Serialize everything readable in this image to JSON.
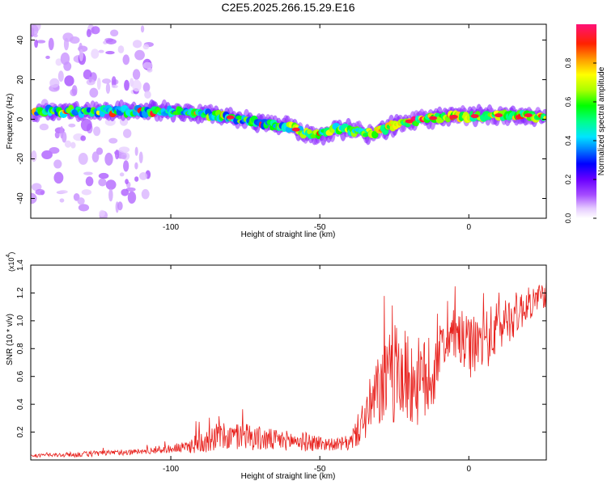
{
  "figure_title": "C2E5.2025.266.15.29.E16",
  "colors": {
    "snr_line": "#e8201c",
    "spectrogram_background": "#ffffff",
    "axis": "#000000"
  },
  "chart_data": [
    {
      "type": "heatmap",
      "title": "C2E5.2025.266.15.29.E16",
      "xlabel": "Height of straight line (km)",
      "ylabel": "Frequency (Hz)",
      "xlim": [
        -147,
        26
      ],
      "ylim": [
        -50,
        48
      ],
      "x_ticks": [
        -100,
        -50,
        0
      ],
      "y_ticks": [
        -40,
        -20,
        0,
        20,
        40
      ],
      "colorbar": {
        "label": "Normalized spectral amplitude",
        "range": [
          0,
          1
        ],
        "ticks": [
          "0.0",
          "0.2",
          "0.4",
          "0.6",
          "0.8"
        ],
        "tick_values": [
          0,
          0.2,
          0.4,
          0.6,
          0.8
        ],
        "colormap": "rainbow (white-purple-blue-cyan-green-yellow-red-magenta)"
      },
      "ridge": {
        "description": "Dominant frequency track vs height",
        "x": [
          -145,
          -130,
          -115,
          -100,
          -90,
          -80,
          -70,
          -60,
          -55,
          -50,
          -45,
          -40,
          -35,
          -30,
          -25,
          -20,
          -10,
          0,
          10,
          20,
          26
        ],
        "y": [
          4,
          4,
          4,
          4,
          3,
          1,
          -2,
          -4,
          -7,
          -8,
          -5,
          -5,
          -7,
          -6,
          -3,
          -1,
          1,
          1.5,
          2,
          2,
          1
        ]
      }
    },
    {
      "type": "line",
      "title": "",
      "xlabel": "Height of straight line (km)",
      "ylabel": "SNR (10 * v/v)",
      "y_scale_note": "(x10",
      "y_scale_exp": "4",
      "xlim": [
        -147,
        26
      ],
      "ylim": [
        0,
        1.4
      ],
      "x_ticks": [
        -100,
        -50,
        0
      ],
      "y_ticks": [
        0.2,
        0.4,
        0.6,
        0.8,
        1.0,
        1.2,
        1.4
      ],
      "y_tick_labels": [
        "0.2",
        "0.4",
        "0.6",
        "0.8",
        "1.0",
        "1.2",
        "1.4"
      ],
      "series": [
        {
          "name": "SNR",
          "envelope_x": [
            -147,
            -130,
            -110,
            -100,
            -95,
            -90,
            -85,
            -80,
            -75,
            -70,
            -65,
            -60,
            -55,
            -50,
            -45,
            -40,
            -37,
            -33,
            -30,
            -27,
            -24,
            -20,
            -16,
            -12,
            -10,
            -8,
            -5,
            -2,
            0,
            4,
            8,
            12,
            16,
            20,
            26
          ],
          "envelope_mid": [
            0.03,
            0.04,
            0.06,
            0.08,
            0.09,
            0.13,
            0.17,
            0.16,
            0.18,
            0.15,
            0.14,
            0.14,
            0.13,
            0.12,
            0.11,
            0.12,
            0.22,
            0.38,
            0.5,
            0.58,
            0.62,
            0.58,
            0.55,
            0.6,
            0.78,
            0.85,
            0.9,
            0.85,
            0.8,
            0.85,
            0.9,
            1.0,
            1.05,
            1.12,
            1.2
          ],
          "envelope_amp": [
            0.01,
            0.02,
            0.02,
            0.03,
            0.04,
            0.09,
            0.1,
            0.1,
            0.1,
            0.09,
            0.08,
            0.07,
            0.07,
            0.06,
            0.04,
            0.06,
            0.12,
            0.22,
            0.28,
            0.32,
            0.38,
            0.34,
            0.32,
            0.3,
            0.18,
            0.16,
            0.18,
            0.22,
            0.22,
            0.2,
            0.22,
            0.18,
            0.16,
            0.12,
            0.1
          ]
        }
      ]
    }
  ]
}
